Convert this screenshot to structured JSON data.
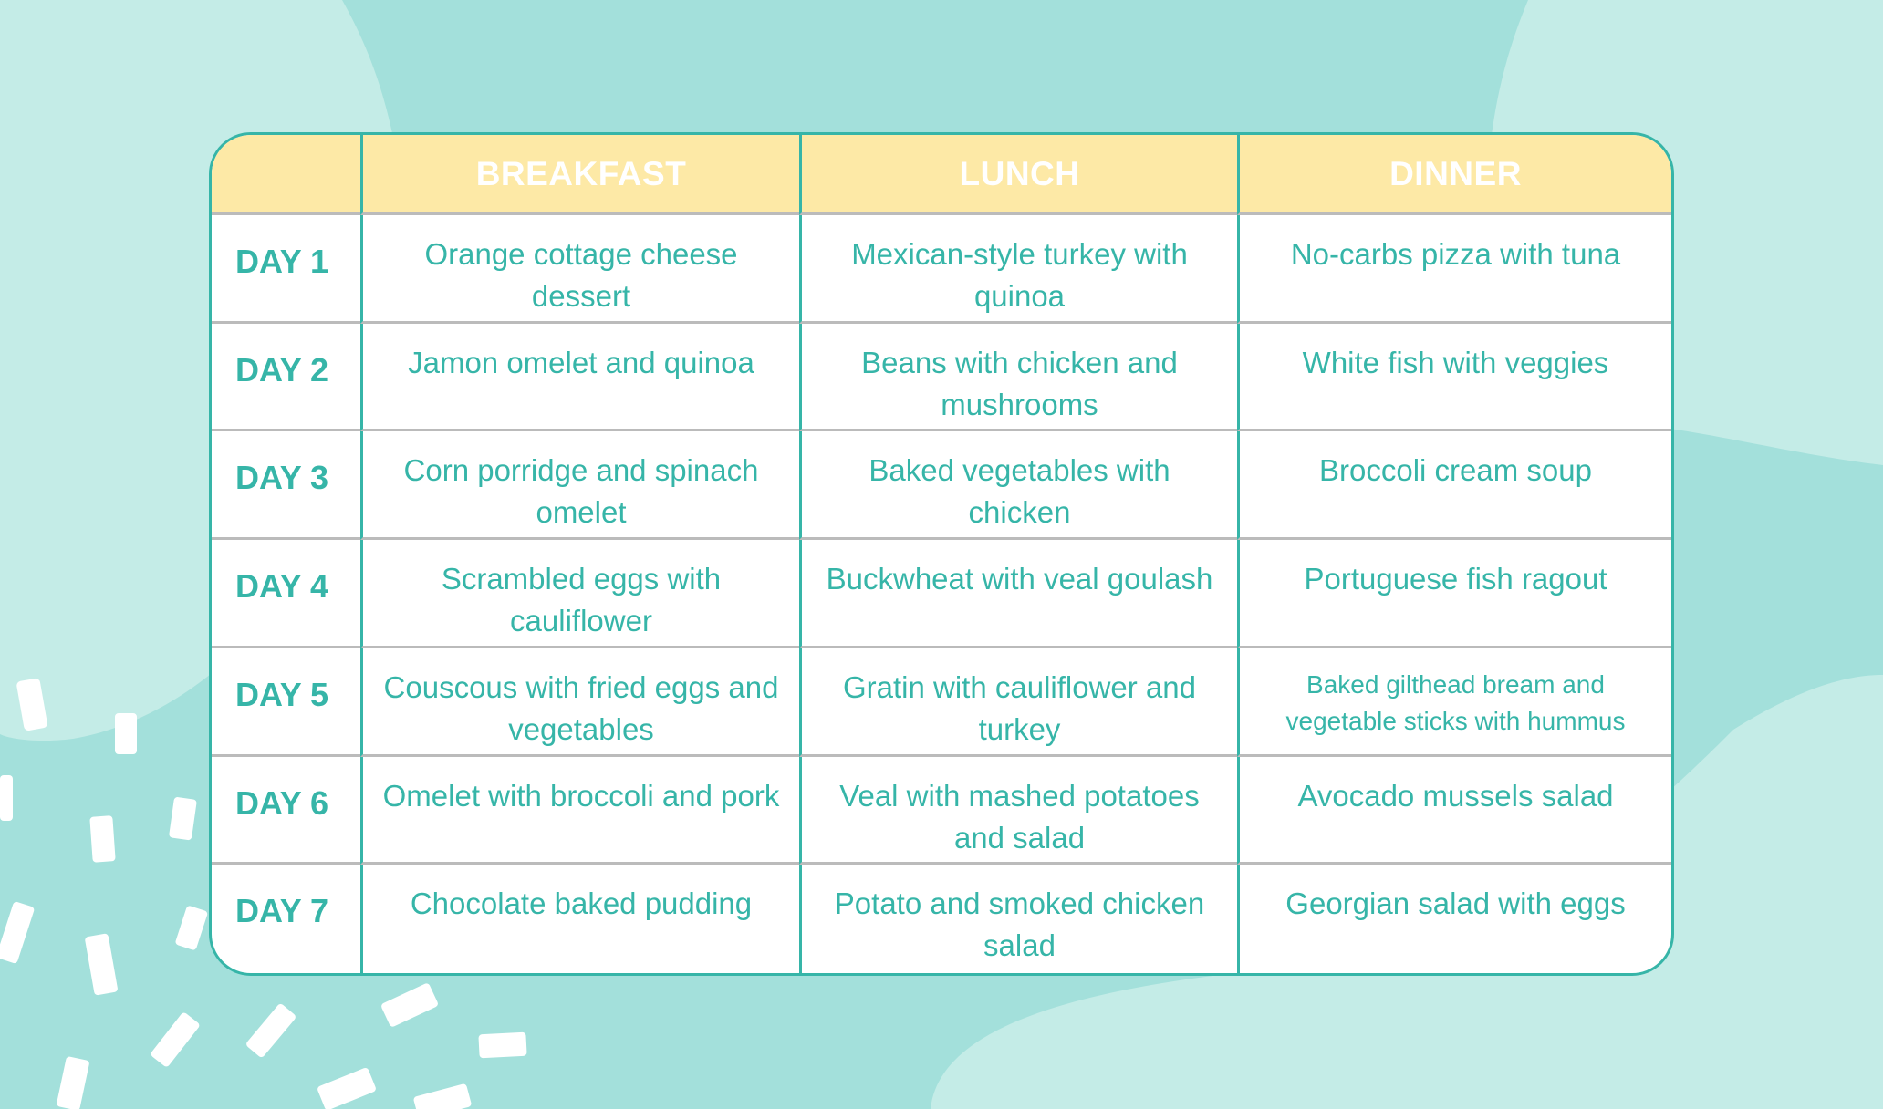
{
  "colors": {
    "accent": "#36b5a8",
    "header_bg": "#fde9a6",
    "bg_light": "#c4ece7",
    "bg_mid": "#a3e0db"
  },
  "table": {
    "headers": [
      "",
      "BREAKFAST",
      "LUNCH",
      "DINNER"
    ],
    "rows": [
      {
        "day": "DAY 1",
        "breakfast": "Orange cottage cheese dessert",
        "lunch": "Mexican-style turkey with quinoa",
        "dinner": "No-carbs pizza with tuna"
      },
      {
        "day": "DAY 2",
        "breakfast": "Jamon omelet and quinoa",
        "lunch": "Beans with chicken and mushrooms",
        "dinner": "White fish with veggies"
      },
      {
        "day": "DAY 3",
        "breakfast": "Corn porridge and spinach omelet",
        "lunch": "Baked vegetables with chicken",
        "dinner": "Broccoli cream soup"
      },
      {
        "day": "DAY 4",
        "breakfast": "Scrambled eggs with cauliflower",
        "lunch": "Buckwheat with veal goulash",
        "dinner": "Portuguese fish ragout"
      },
      {
        "day": "DAY 5",
        "breakfast": "Couscous with fried eggs and vegetables",
        "lunch": "Gratin with cauliflower and turkey",
        "dinner": "Baked gilthead bream and vegetable sticks with hummus"
      },
      {
        "day": "DAY 6",
        "breakfast": "Omelet with broccoli and pork",
        "lunch": "Veal with mashed potatoes and salad",
        "dinner": "Avocado mussels salad"
      },
      {
        "day": "DAY 7",
        "breakfast": "Chocolate baked pudding",
        "lunch": "Potato and smoked chicken salad",
        "dinner": "Georgian salad with eggs"
      }
    ]
  }
}
